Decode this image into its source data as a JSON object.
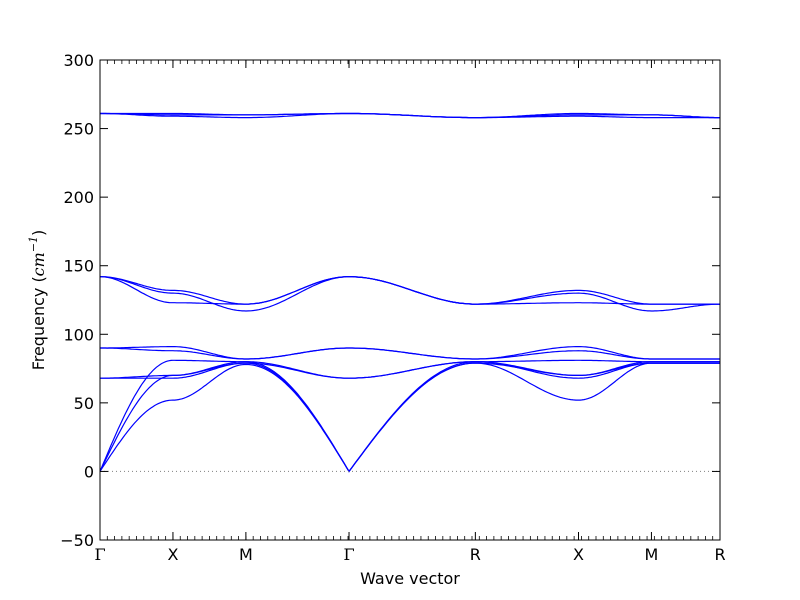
{
  "chart_data": {
    "type": "line",
    "title": "",
    "xlabel": "Wave vector",
    "ylabel_prefix": "Frequency (",
    "ylabel_unit": "cm",
    "ylabel_exp": "−1",
    "ylabel_suffix": ")",
    "ylim": [
      -50,
      300
    ],
    "yticks": [
      -50,
      0,
      50,
      100,
      150,
      200,
      250,
      300
    ],
    "ytick_labels": [
      "−50",
      "0",
      "50",
      "100",
      "150",
      "200",
      "250",
      "300"
    ],
    "grid": false,
    "legend": "none",
    "line_color": "#0000ff",
    "zero_line_color": "#808080",
    "xlim": [
      0,
      8.5
    ],
    "high_symmetry_points": [
      {
        "label": "Γ",
        "x": 0
      },
      {
        "label": "X",
        "x": 1
      },
      {
        "label": "M",
        "x": 2
      },
      {
        "label": "Γ",
        "x": 3.414
      },
      {
        "label": "R",
        "x": 5.146
      },
      {
        "label": "X",
        "x": 6.56
      },
      {
        "label": "M",
        "x": 7.56
      },
      {
        "label": "R",
        "x": 8.5
      }
    ],
    "series": [
      {
        "values": [
          0,
          52,
          78,
          0,
          79,
          52,
          79,
          79
        ]
      },
      {
        "values": [
          0,
          70,
          79,
          0,
          79,
          70,
          79,
          79
        ]
      },
      {
        "values": [
          0,
          81,
          80,
          0,
          80,
          81,
          80,
          80
        ]
      },
      {
        "values": [
          68,
          68,
          79,
          68,
          80,
          68,
          79,
          79
        ]
      },
      {
        "values": [
          68,
          70,
          80,
          68,
          80,
          70,
          80,
          80
        ]
      },
      {
        "values": [
          90,
          88,
          82,
          90,
          82,
          88,
          82,
          82
        ]
      },
      {
        "values": [
          90,
          91,
          82,
          90,
          82,
          91,
          82,
          82
        ]
      },
      {
        "values": [
          142,
          123,
          122,
          142,
          122,
          123,
          122,
          122
        ]
      },
      {
        "values": [
          142,
          130,
          117,
          142,
          122,
          130,
          117,
          122
        ]
      },
      {
        "values": [
          142,
          132,
          122,
          142,
          122,
          132,
          122,
          122
        ]
      },
      {
        "values": [
          261,
          259,
          258,
          261,
          258,
          259,
          258,
          258
        ]
      },
      {
        "values": [
          261,
          260,
          260,
          261,
          258,
          260,
          260,
          258
        ]
      },
      {
        "values": [
          261,
          261,
          260,
          261,
          258,
          261,
          260,
          258
        ]
      }
    ]
  }
}
